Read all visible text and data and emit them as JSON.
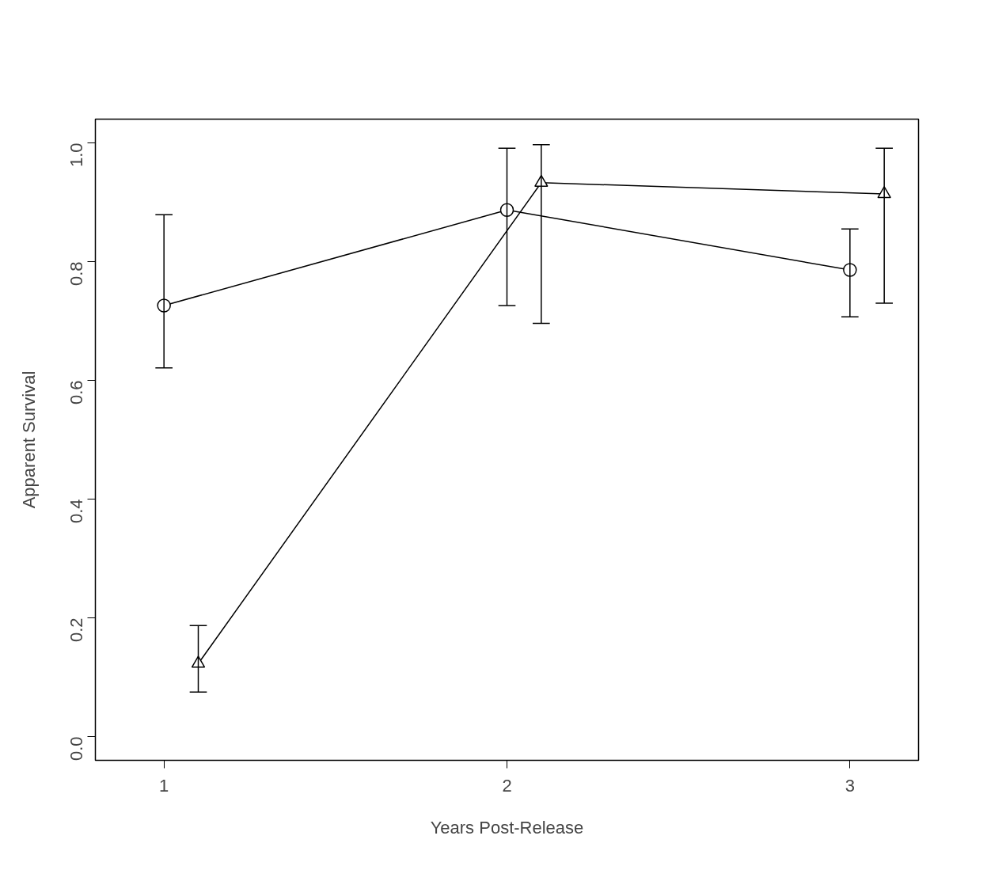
{
  "chart_data": {
    "type": "line",
    "xlabel": "Years Post-Release",
    "ylabel": "Apparent Survival",
    "xlim": [
      0.8,
      3.2
    ],
    "xticks": [
      1,
      2,
      3
    ],
    "ylim": [
      -0.04,
      1.04
    ],
    "yticks": [
      {
        "value": 0,
        "label": "0.0"
      },
      {
        "value": 0.2,
        "label": "0.2"
      },
      {
        "value": 0.4,
        "label": "0.4"
      },
      {
        "value": 0.6,
        "label": "0.6"
      },
      {
        "value": 0.8,
        "label": "0.8"
      },
      {
        "value": 1,
        "label": "1.0"
      }
    ],
    "grid": false,
    "series": [
      {
        "color": "#000000",
        "marker": "circle",
        "x": [
          1,
          2,
          3
        ],
        "values": [
          0.726,
          0.887,
          0.786
        ],
        "errors": [
          [
            0.621,
            0.879
          ],
          [
            0.726,
            0.991
          ],
          [
            0.707,
            0.855
          ]
        ]
      },
      {
        "color": "#000000",
        "marker": "triangle",
        "x": [
          1.1,
          2.1,
          3.1
        ],
        "values": [
          0.123,
          0.933,
          0.914
        ],
        "errors": [
          [
            0.075,
            0.187
          ],
          [
            0.696,
            0.997
          ],
          [
            0.73,
            0.991
          ]
        ]
      }
    ]
  }
}
